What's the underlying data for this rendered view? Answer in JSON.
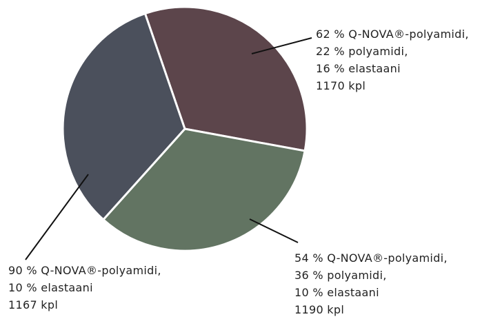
{
  "chart_data": {
    "type": "pie",
    "categories": [
      [
        "62  % Q-NOVA®-polyamidi,",
        "22 % polyamidi,",
        "16 % elastaani"
      ],
      [
        "54 % Q-NOVA®-polyamidi,",
        "36 % polyamidi,",
        "10  % elastaani"
      ],
      [
        "90 % Q-NOVA®-polyamidi,",
        "10 % elastaani"
      ]
    ],
    "values": [
      1170,
      1190,
      1167
    ],
    "value_labels": [
      "1170 kpl",
      "1190 kpl",
      "1167 kpl"
    ],
    "colors": [
      "#5c454b",
      "#627462",
      "#4b505c"
    ]
  }
}
